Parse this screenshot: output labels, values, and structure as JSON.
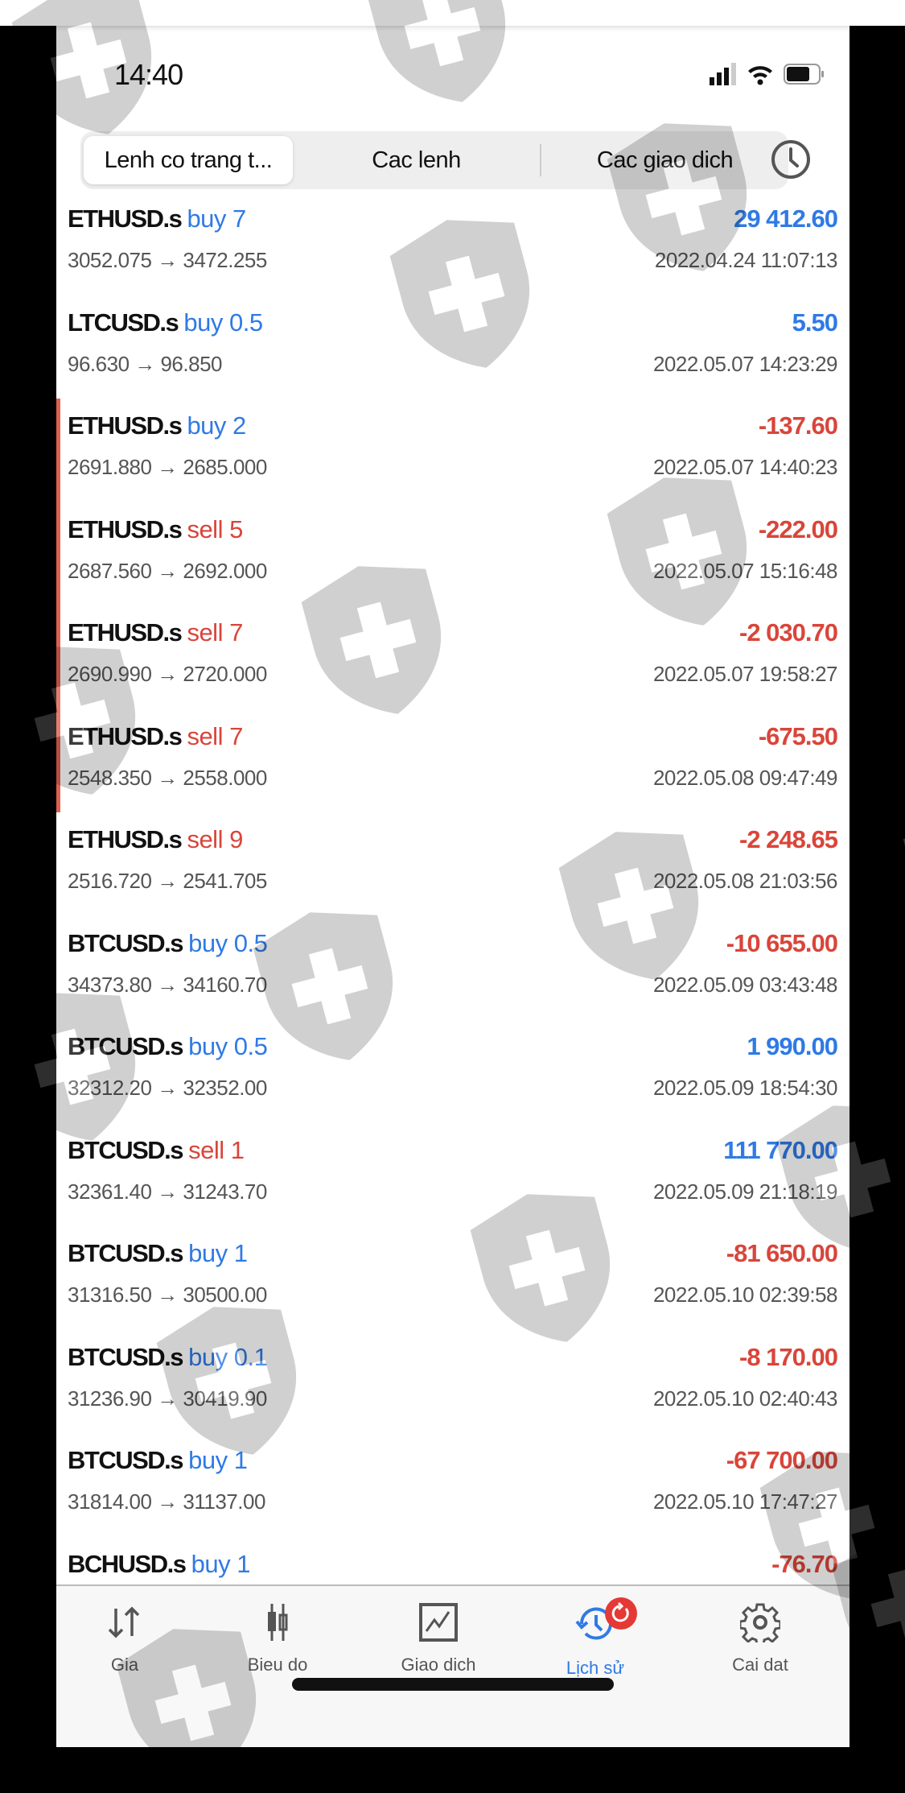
{
  "status_bar": {
    "time": "14:40"
  },
  "tabs": [
    {
      "label": "Lenh co trang t...",
      "active": true
    },
    {
      "label": "Cac lenh"
    },
    {
      "label": "Cac giao dich"
    }
  ],
  "colors": {
    "buy": "#2f7ae5",
    "sell": "#d9453a",
    "accent": "#2f7ae5",
    "badge": "#e53935"
  },
  "trades": [
    {
      "symbol": "ETHUSD.s",
      "side": "buy 7",
      "type": "buy",
      "profit": "29 412.60",
      "profit_sign": "pos",
      "prices": "3052.075 → 3472.255",
      "datetime": "2022.04.24 11:07:13"
    },
    {
      "symbol": "LTCUSD.s",
      "side": "buy 0.5",
      "type": "buy",
      "profit": "5.50",
      "profit_sign": "pos",
      "prices": "96.630 → 96.850",
      "datetime": "2022.05.07 14:23:29"
    },
    {
      "symbol": "ETHUSD.s",
      "side": "buy 2",
      "type": "buy",
      "profit": "-137.60",
      "profit_sign": "neg",
      "prices": "2691.880 → 2685.000",
      "datetime": "2022.05.07 14:40:23",
      "marked": true
    },
    {
      "symbol": "ETHUSD.s",
      "side": "sell 5",
      "type": "sell",
      "profit": "-222.00",
      "profit_sign": "neg",
      "prices": "2687.560 → 2692.000",
      "datetime": "2022.05.07 15:16:48",
      "marked": true
    },
    {
      "symbol": "ETHUSD.s",
      "side": "sell 7",
      "type": "sell",
      "profit": "-2 030.70",
      "profit_sign": "neg",
      "prices": "2690.990 → 2720.000",
      "datetime": "2022.05.07 19:58:27",
      "marked": true
    },
    {
      "symbol": "ETHUSD.s",
      "side": "sell 7",
      "type": "sell",
      "profit": "-675.50",
      "profit_sign": "neg",
      "prices": "2548.350 → 2558.000",
      "datetime": "2022.05.08 09:47:49",
      "marked": true
    },
    {
      "symbol": "ETHUSD.s",
      "side": "sell 9",
      "type": "sell",
      "profit": "-2 248.65",
      "profit_sign": "neg",
      "prices": "2516.720 → 2541.705",
      "datetime": "2022.05.08 21:03:56"
    },
    {
      "symbol": "BTCUSD.s",
      "side": "buy 0.5",
      "type": "buy",
      "profit": "-10 655.00",
      "profit_sign": "neg",
      "prices": "34373.80 → 34160.70",
      "datetime": "2022.05.09 03:43:48"
    },
    {
      "symbol": "BTCUSD.s",
      "side": "buy 0.5",
      "type": "buy",
      "profit": "1 990.00",
      "profit_sign": "pos",
      "prices": "32312.20 → 32352.00",
      "datetime": "2022.05.09 18:54:30"
    },
    {
      "symbol": "BTCUSD.s",
      "side": "sell 1",
      "type": "sell",
      "profit": "111 770.00",
      "profit_sign": "pos",
      "prices": "32361.40 → 31243.70",
      "datetime": "2022.05.09 21:18:19"
    },
    {
      "symbol": "BTCUSD.s",
      "side": "buy 1",
      "type": "buy",
      "profit": "-81 650.00",
      "profit_sign": "neg",
      "prices": "31316.50 → 30500.00",
      "datetime": "2022.05.10 02:39:58"
    },
    {
      "symbol": "BTCUSD.s",
      "side": "buy 0.1",
      "type": "buy",
      "profit": "-8 170.00",
      "profit_sign": "neg",
      "prices": "31236.90 → 30419.90",
      "datetime": "2022.05.10 02:40:43"
    },
    {
      "symbol": "BTCUSD.s",
      "side": "buy 1",
      "type": "buy",
      "profit": "-67 700.00",
      "profit_sign": "neg",
      "prices": "31814.00 → 31137.00",
      "datetime": "2022.05.10 17:47:27"
    },
    {
      "symbol": "BCHUSD.s",
      "side": "buy 1",
      "type": "buy",
      "profit": "-76.70",
      "profit_sign": "neg",
      "prices": "",
      "datetime": ""
    }
  ],
  "nav": [
    {
      "label": "Gia",
      "icon": "arrows-up-down-icon"
    },
    {
      "label": "Bieu do",
      "icon": "candlestick-icon"
    },
    {
      "label": "Giao dich",
      "icon": "trade-chart-icon"
    },
    {
      "label": "Lịch sử",
      "icon": "history-icon",
      "active": true
    },
    {
      "label": "Cai dat",
      "icon": "gear-icon"
    }
  ]
}
